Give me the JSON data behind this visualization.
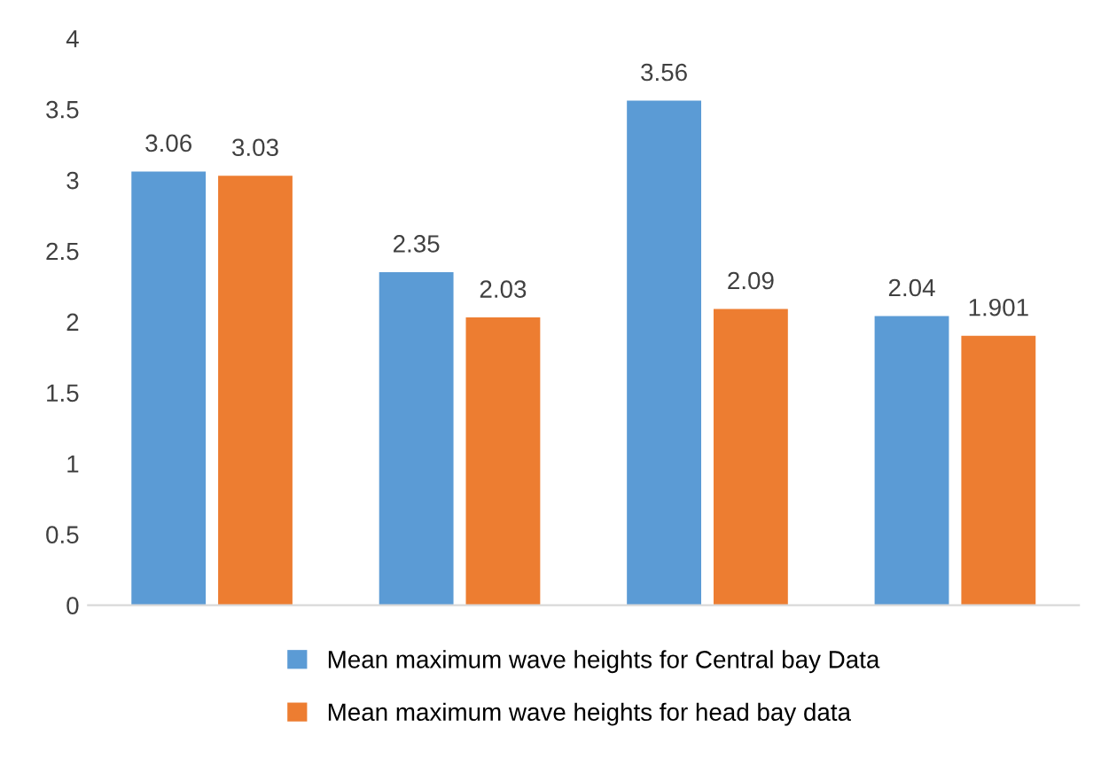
{
  "chart_data": {
    "type": "bar",
    "categories": [
      null,
      null,
      null,
      null
    ],
    "series": [
      {
        "name": "Mean maximum wave heights for Central bay Data",
        "color": "#5b9bd5",
        "values": [
          3.06,
          2.35,
          3.56,
          2.04
        ]
      },
      {
        "name": "Mean maximum wave heights for head bay data",
        "color": "#ed7d31",
        "values": [
          3.03,
          2.03,
          2.09,
          1.901
        ]
      }
    ],
    "ylim": [
      0,
      4
    ],
    "yticks": [
      0,
      0.5,
      1,
      1.5,
      2,
      2.5,
      3,
      3.5,
      4
    ],
    "data_labels": true,
    "legend": "bottom",
    "grid": false,
    "tick_labels": "y"
  }
}
